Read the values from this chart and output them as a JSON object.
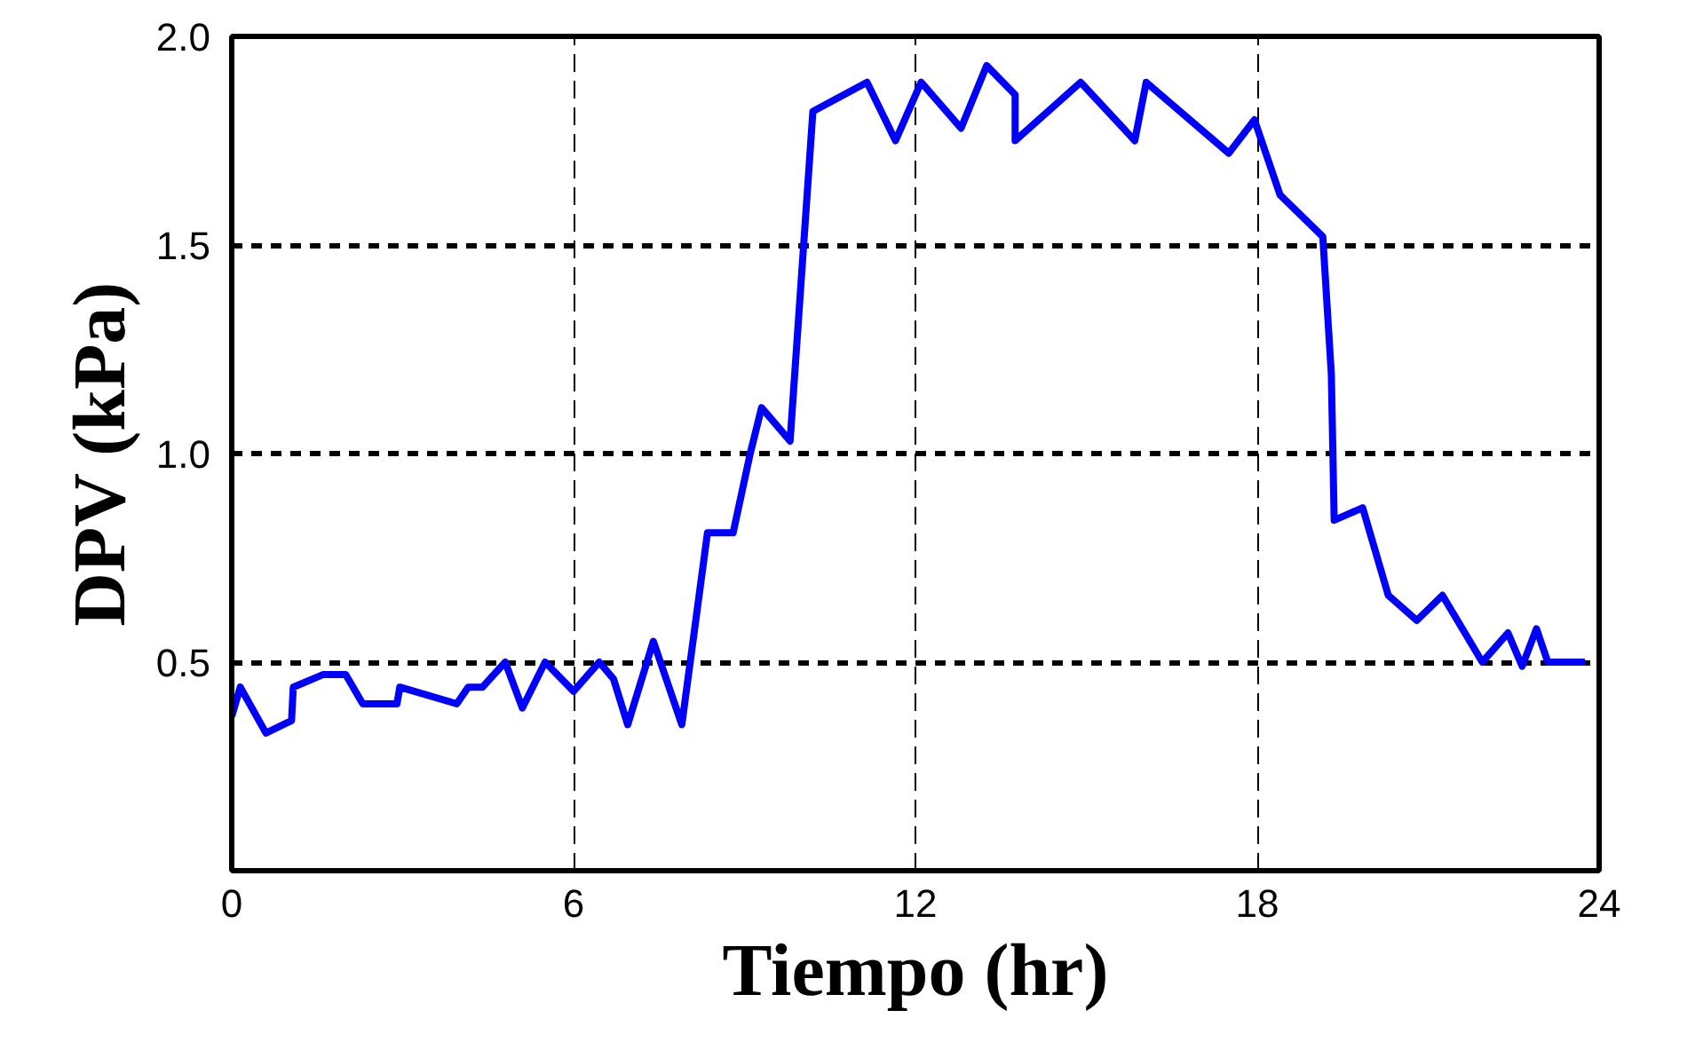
{
  "chart_data": {
    "type": "line",
    "xlabel": "Tiempo (hr)",
    "ylabel": "DPV (kPa)",
    "xlim": [
      0,
      24
    ],
    "ylim": [
      0,
      2.0
    ],
    "xticks": [
      0,
      6,
      12,
      18,
      24
    ],
    "yticks": [
      {
        "value": 0.5,
        "label": "0.5"
      },
      {
        "value": 1.0,
        "label": "1.0"
      },
      {
        "value": 1.5,
        "label": "1.5"
      },
      {
        "value": 2.0,
        "label": "2.0"
      }
    ],
    "grid": true,
    "line_style": "solid",
    "series": [
      {
        "color": "#0000ff",
        "x": [
          0,
          0.15,
          0.6,
          1.05,
          1.08,
          1.6,
          2.0,
          2.3,
          2.9,
          2.95,
          3.95,
          4.15,
          4.4,
          4.8,
          5.1,
          5.5,
          6.0,
          6.45,
          6.7,
          6.95,
          7.4,
          7.9,
          8.35,
          8.8,
          9.1,
          9.3,
          9.8,
          10.2,
          11.15,
          11.65,
          12.1,
          12.8,
          13.25,
          13.75,
          13.75,
          14.9,
          15.85,
          16.05,
          17.5,
          17.95,
          18.4,
          19.15,
          19.3,
          19.35,
          19.85,
          20.3,
          20.8,
          21.25,
          21.95,
          22.4,
          22.65,
          22.9,
          23.1,
          23.75
        ],
        "values": [
          0.37,
          0.44,
          0.33,
          0.36,
          0.44,
          0.47,
          0.47,
          0.4,
          0.4,
          0.44,
          0.4,
          0.44,
          0.44,
          0.5,
          0.39,
          0.5,
          0.43,
          0.5,
          0.46,
          0.35,
          0.55,
          0.35,
          0.81,
          0.81,
          1.0,
          1.11,
          1.03,
          1.82,
          1.89,
          1.75,
          1.89,
          1.78,
          1.93,
          1.86,
          1.75,
          1.89,
          1.75,
          1.89,
          1.72,
          1.8,
          1.62,
          1.52,
          1.19,
          0.84,
          0.87,
          0.66,
          0.6,
          0.66,
          0.5,
          0.57,
          0.49,
          0.58,
          0.5,
          0.5
        ]
      }
    ]
  }
}
